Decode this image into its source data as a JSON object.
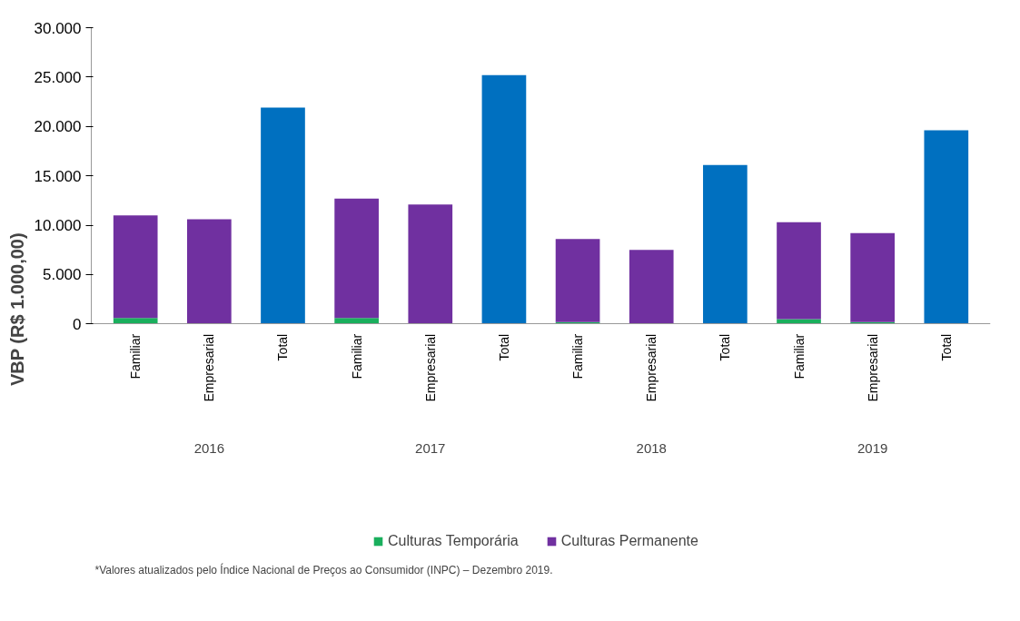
{
  "chart_data": {
    "type": "bar",
    "stacked": true,
    "ylabel": "VBP (R$ 1.000,00)",
    "categories": [
      "Familiar",
      "Empresarial",
      "Total",
      "Familiar",
      "Empresarial",
      "Total",
      "Familiar",
      "Empresarial",
      "Total",
      "Familiar",
      "Empresarial",
      "Total"
    ],
    "series": [
      {
        "name": "Culturas Temporária",
        "color": "#1aaf5d",
        "values": [
          600,
          null,
          null,
          600,
          null,
          null,
          200,
          null,
          null,
          500,
          200,
          null
        ]
      },
      {
        "name": "Culturas Permanente",
        "color": "#7030a0",
        "values": [
          10400,
          10600,
          null,
          12100,
          12100,
          null,
          8400,
          7500,
          null,
          9800,
          9000,
          null
        ]
      },
      {
        "color": "#0070c0",
        "values": [
          null,
          null,
          21900,
          null,
          null,
          25200,
          null,
          null,
          16100,
          null,
          null,
          19600
        ]
      }
    ],
    "ylim": [
      0,
      30000
    ],
    "yticks": [
      0,
      {
        "value": 5000,
        "label": "5.000"
      },
      {
        "value": 10000,
        "label": "10.000"
      },
      {
        "value": 15000,
        "label": "15.000"
      },
      {
        "value": 20000,
        "label": "20.000"
      },
      {
        "value": 25000,
        "label": "25.000"
      },
      {
        "value": 30000,
        "label": "30.000"
      }
    ],
    "annotations": [
      "2016",
      "2017",
      "2018",
      "2019",
      "*Valores atualizados  pelo Índice Nacional de Preços ao Consumidor (INPC) – Dezembro 2019."
    ],
    "grid": false,
    "legend": "bottom"
  }
}
